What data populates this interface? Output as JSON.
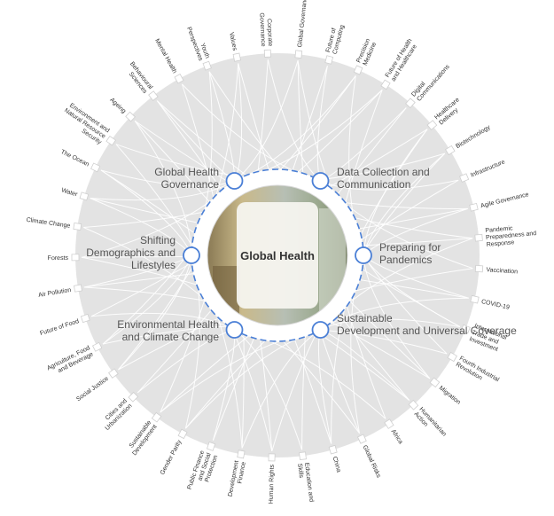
{
  "center": {
    "title": "Global Health"
  },
  "key_issues": [
    {
      "label": "Global Health Governance"
    },
    {
      "label": "Data Collection and Communication"
    },
    {
      "label": "Preparing for Pandemics"
    },
    {
      "label": "Sustainable Development and Universal Coverage"
    },
    {
      "label": "Environmental Health and Climate Change"
    },
    {
      "label": "Shifting Demographics and Lifestyles"
    }
  ],
  "topics": [
    "Global Governance",
    "Future of Computing",
    "Precision Medicine",
    "Future of Health and Healthcare",
    "Digital Communications",
    "Healthcare Delivery",
    "Biotechnology",
    "Infrastructure",
    "Agile Governance",
    "Pandemic Preparedness and Response",
    "Vaccination",
    "COVID-19",
    "International Trade and Investment",
    "Fourth Industrial Revolution",
    "Migration",
    "Humanitarian Action",
    "Africa",
    "Global Risks",
    "China",
    "Education and Skills",
    "Human Rights",
    "Development Finance",
    "Public Finance and Social Protection",
    "Gender Parity",
    "Sustainable Development",
    "Cities and Urbanization",
    "Social Justice",
    "Agriculture, Food and Beverage",
    "Future of Food",
    "Air Pollution",
    "Forests",
    "Climate Change",
    "Water",
    "The Ocean",
    "Environment and Natural Resource Security",
    "Ageing",
    "Behavioural Sciences",
    "Mental Health",
    "Youth Perspectives",
    "Values",
    "Corporate Governance"
  ],
  "colors": {
    "outer_disc": "#e3e3e3",
    "link_line": "#ffffff",
    "dashed_ring": "#4a7fd6",
    "node_stroke": "#4a7fd6",
    "label_text": "#555555",
    "topic_text": "#333333"
  }
}
